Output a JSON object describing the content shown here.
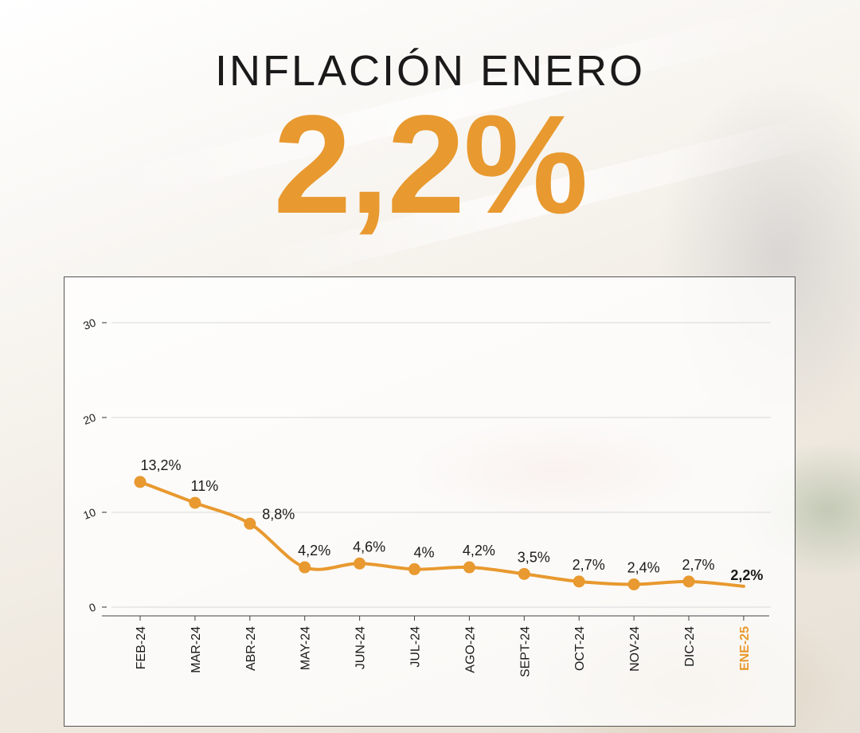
{
  "header": {
    "title": "INFLACIÓN ENERO",
    "value": "2,2%"
  },
  "colors": {
    "accent": "#e8992f",
    "text": "#1a1a1a",
    "last_label": "#e8992f"
  },
  "chart_data": {
    "type": "line",
    "categories": [
      "FEB-24",
      "MAR-24",
      "ABR-24",
      "MAY-24",
      "JUN-24",
      "JUL-24",
      "AGO-24",
      "SEPT-24",
      "OCT-24",
      "NOV-24",
      "DIC-24",
      "ENE-25"
    ],
    "values": [
      13.2,
      11,
      8.8,
      4.2,
      4.6,
      4,
      4.2,
      3.5,
      2.7,
      2.4,
      2.7,
      2.2
    ],
    "labels": [
      "13,2%",
      "11%",
      "8,8%",
      "4,2%",
      "4,6%",
      "4%",
      "4,2%",
      "3,5%",
      "2,7%",
      "2,4%",
      "2,7%",
      "2,2%"
    ],
    "yticks": [
      "0",
      "10",
      "20",
      "30"
    ],
    "ylim": [
      0,
      30
    ],
    "grid": true,
    "highlight_last": true
  }
}
